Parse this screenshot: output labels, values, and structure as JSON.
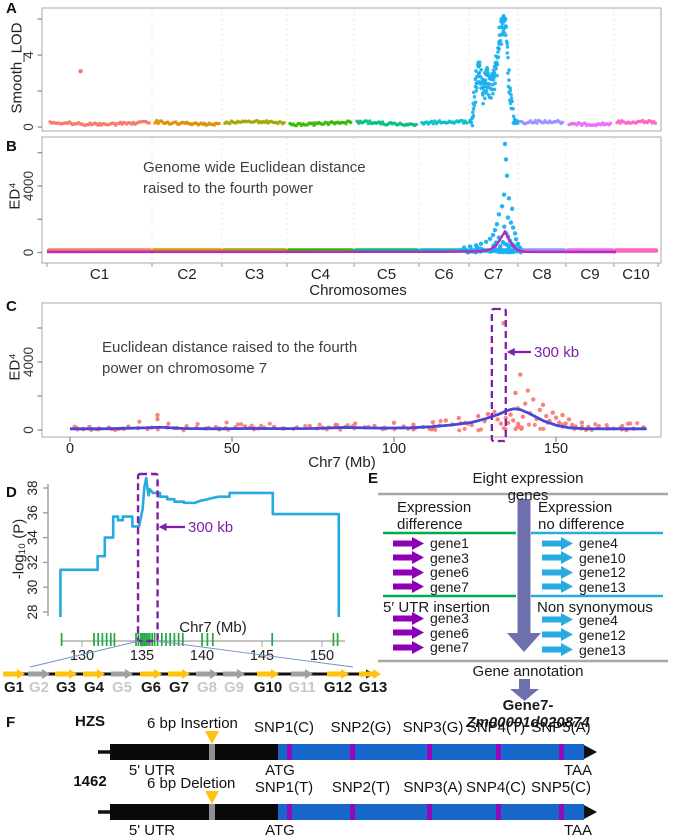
{
  "panels": {
    "a": "A",
    "b": "B",
    "c": "C",
    "d": "D",
    "e": "E",
    "f": "F"
  },
  "colors": {
    "accent_purple": "#7f1fa8",
    "arrow_purple": "#8d00b5",
    "arrow_cyan": "#29abe2",
    "slate_arrow": "#6e70ad",
    "green_line": "#00ad4e",
    "cyan_line": "#29abe2",
    "gray_line": "#a8a8a8",
    "curve_cyan": "#25aae1",
    "fit_blue": "#4646d8",
    "fit_magenta": "#bb2abb",
    "dot_salmon": "#f8766d",
    "dot_cyan": "#18b0f0",
    "gene_yellow": "#ffc30b",
    "gene_gray": "#a0a0a0",
    "gene_gray_label": "#c8c8c8",
    "snp_green": "#1ca83e",
    "f_blue": "#1667c9",
    "f_purple": "#9208be",
    "f_triangle": "#ffc30b",
    "border_gray": "#a8a8a8",
    "grid_gray": "#dedede"
  },
  "chart_data": [
    {
      "id": "A",
      "type": "scatter",
      "ylabel": "Smooth_LOD",
      "yticks": [
        0,
        2,
        4,
        6
      ],
      "ytick_labels": [
        "0",
        "",
        "4",
        ""
      ],
      "ylim": [
        0,
        6.8
      ],
      "categories": [
        "C1",
        "C2",
        "C3",
        "C4",
        "C5",
        "C6",
        "C7",
        "C8",
        "C9",
        "C10"
      ],
      "series_colors": [
        "#f8766d",
        "#d89000",
        "#a3a500",
        "#39b600",
        "#00bf7d",
        "#00bfc4",
        "#18b0f0",
        "#9590ff",
        "#e76bf3",
        "#ff62bc"
      ],
      "baseline_lod": 0.22,
      "outlier": {
        "category": "C1",
        "frac": 0.32,
        "lod": 3.1
      },
      "c7_peak_profile": [
        [
          0.0,
          0.28
        ],
        [
          0.05,
          0.5
        ],
        [
          0.1,
          1.6
        ],
        [
          0.14,
          2.9
        ],
        [
          0.18,
          3.7
        ],
        [
          0.22,
          3.8
        ],
        [
          0.26,
          2.9
        ],
        [
          0.3,
          2.5
        ],
        [
          0.34,
          3.1
        ],
        [
          0.38,
          3.5
        ],
        [
          0.42,
          2.8
        ],
        [
          0.47,
          3.1
        ],
        [
          0.52,
          3.4
        ],
        [
          0.57,
          4.2
        ],
        [
          0.62,
          5.4
        ],
        [
          0.66,
          6.2
        ],
        [
          0.71,
          6.5
        ],
        [
          0.75,
          6.3
        ],
        [
          0.79,
          4.6
        ],
        [
          0.82,
          2.3
        ],
        [
          0.86,
          2.1
        ],
        [
          0.89,
          1.2
        ],
        [
          0.92,
          0.4
        ],
        [
          1.0,
          0.3
        ]
      ]
    },
    {
      "id": "B",
      "type": "scatter+line",
      "ylabel": "ED⁴",
      "xlabel": "Chromosomes",
      "caption": "Genome wide Euclidean distance\nraised to the fourth power",
      "yticks": [
        0,
        2000,
        4000,
        6000
      ],
      "ytick_labels": [
        "0",
        "",
        "4000",
        ""
      ],
      "ylim": [
        0,
        6800
      ],
      "categories": [
        "C1",
        "C2",
        "C3",
        "C4",
        "C5",
        "C6",
        "C7",
        "C8",
        "C9",
        "C10"
      ],
      "c7_points": [
        [
          0.735,
          6530
        ],
        [
          0.755,
          5600
        ],
        [
          0.775,
          4620
        ],
        [
          0.715,
          3480
        ],
        [
          0.815,
          3260
        ],
        [
          0.88,
          2630
        ],
        [
          0.675,
          2780
        ],
        [
          0.61,
          2300
        ],
        [
          0.795,
          2100
        ],
        [
          0.855,
          1800
        ],
        [
          0.9,
          1500
        ],
        [
          0.94,
          1150
        ],
        [
          0.96,
          800
        ],
        [
          0.57,
          1700
        ],
        [
          0.53,
          1350
        ],
        [
          0.49,
          1050
        ],
        [
          0.43,
          820
        ],
        [
          0.35,
          640
        ],
        [
          0.245,
          520
        ],
        [
          0.145,
          430
        ],
        [
          0.02,
          360
        ],
        [
          -0.1,
          300
        ],
        [
          0.61,
          900
        ],
        [
          0.69,
          620
        ],
        [
          0.775,
          480
        ],
        [
          0.835,
          380
        ],
        [
          1.0,
          520
        ],
        [
          1.04,
          300
        ],
        [
          0.5,
          420
        ],
        [
          0.55,
          600
        ],
        [
          0.64,
          380
        ],
        [
          0.72,
          1550
        ],
        [
          0.76,
          1150
        ],
        [
          0.8,
          950
        ],
        [
          0.84,
          700
        ],
        [
          0.88,
          500
        ],
        [
          0.92,
          350
        ]
      ],
      "fit_line": [
        [
          -9.0,
          30
        ],
        [
          -0.8,
          40
        ],
        [
          0.0,
          60
        ],
        [
          0.29,
          90
        ],
        [
          0.43,
          180
        ],
        [
          0.55,
          420
        ],
        [
          0.63,
          760
        ],
        [
          0.69,
          1050
        ],
        [
          0.735,
          1280
        ],
        [
          0.775,
          1020
        ],
        [
          0.84,
          640
        ],
        [
          0.92,
          330
        ],
        [
          1.0,
          140
        ],
        [
          1.08,
          60
        ],
        [
          1.25,
          35
        ],
        [
          3.0,
          30
        ]
      ]
    },
    {
      "id": "C",
      "type": "scatter+line",
      "ylabel": "ED⁴",
      "xlabel": "Chr7 (Mb)",
      "caption": "Euclidean distance raised to the fourth\npower on chromosome 7",
      "annotation": {
        "text": "300 kb",
        "box_mb": [
          130.2,
          134.5
        ]
      },
      "yticks": [
        0,
        2000,
        4000,
        6000
      ],
      "ytick_labels": [
        "0",
        "",
        "4000",
        ""
      ],
      "ylim": [
        0,
        7500
      ],
      "xticks": [
        0,
        50,
        100,
        150
      ],
      "xlim": [
        0,
        182
      ],
      "fit_line": [
        [
          0,
          70
        ],
        [
          10,
          70
        ],
        [
          20,
          110
        ],
        [
          28,
          160
        ],
        [
          35,
          90
        ],
        [
          45,
          70
        ],
        [
          55,
          90
        ],
        [
          65,
          80
        ],
        [
          75,
          90
        ],
        [
          85,
          150
        ],
        [
          95,
          110
        ],
        [
          105,
          130
        ],
        [
          112,
          200
        ],
        [
          118,
          300
        ],
        [
          124,
          450
        ],
        [
          128,
          650
        ],
        [
          132,
          900
        ],
        [
          135,
          1150
        ],
        [
          137,
          1250
        ],
        [
          139,
          1200
        ],
        [
          142,
          950
        ],
        [
          146,
          550
        ],
        [
          150,
          280
        ],
        [
          154,
          130
        ],
        [
          158,
          80
        ],
        [
          165,
          70
        ],
        [
          178,
          70
        ]
      ],
      "dots": [
        [
          2,
          120
        ],
        [
          4,
          60
        ],
        [
          6,
          180
        ],
        [
          9,
          90
        ],
        [
          12,
          140
        ],
        [
          15,
          60
        ],
        [
          18,
          200
        ],
        [
          21,
          110
        ],
        [
          24,
          90
        ],
        [
          27,
          880
        ],
        [
          27,
          640
        ],
        [
          30,
          150
        ],
        [
          33,
          110
        ],
        [
          36,
          220
        ],
        [
          39,
          130
        ],
        [
          42,
          90
        ],
        [
          45,
          170
        ],
        [
          48,
          110
        ],
        [
          51,
          140
        ],
        [
          54,
          200
        ],
        [
          57,
          90
        ],
        [
          60,
          130
        ],
        [
          63,
          180
        ],
        [
          66,
          90
        ],
        [
          70,
          150
        ],
        [
          74,
          230
        ],
        [
          78,
          120
        ],
        [
          82,
          300
        ],
        [
          85,
          170
        ],
        [
          88,
          380
        ],
        [
          91,
          160
        ],
        [
          94,
          240
        ],
        [
          97,
          130
        ],
        [
          100,
          420
        ],
        [
          103,
          200
        ],
        [
          106,
          310
        ],
        [
          109,
          170
        ],
        [
          112,
          460
        ],
        [
          114,
          260
        ],
        [
          116,
          560
        ],
        [
          118,
          330
        ],
        [
          120,
          700
        ],
        [
          122,
          420
        ],
        [
          124,
          300
        ],
        [
          126,
          820
        ],
        [
          128,
          520
        ],
        [
          129,
          940
        ],
        [
          131,
          1060
        ],
        [
          132,
          620
        ],
        [
          133,
          380
        ],
        [
          133.8,
          6280
        ],
        [
          134.5,
          700
        ],
        [
          135.2,
          420
        ],
        [
          136,
          900
        ],
        [
          136.8,
          560
        ],
        [
          137.5,
          2180
        ],
        [
          138.2,
          1280
        ],
        [
          139,
          3260
        ],
        [
          139.8,
          780
        ],
        [
          140.5,
          1550
        ],
        [
          141.3,
          2320
        ],
        [
          142,
          980
        ],
        [
          143,
          1800
        ],
        [
          144,
          640
        ],
        [
          145,
          1180
        ],
        [
          146,
          1480
        ],
        [
          147,
          820
        ],
        [
          148,
          540
        ],
        [
          149,
          1020
        ],
        [
          150,
          720
        ],
        [
          151,
          440
        ],
        [
          152,
          880
        ],
        [
          153,
          380
        ],
        [
          154,
          620
        ],
        [
          155,
          300
        ],
        [
          156,
          200
        ],
        [
          158,
          440
        ],
        [
          160,
          180
        ],
        [
          163,
          120
        ],
        [
          166,
          90
        ],
        [
          170,
          140
        ],
        [
          174,
          80
        ],
        [
          177,
          160
        ]
      ]
    },
    {
      "id": "D",
      "type": "step-line",
      "ylabel": "-log₁₀ (P)",
      "xlabel": "Chr7 (Mb)",
      "yticks": [
        28,
        30,
        32,
        34,
        36,
        38
      ],
      "xticks": [
        130,
        135,
        140,
        145,
        150
      ],
      "xlim": [
        128,
        152.5
      ],
      "annotation": {
        "text": "300 kb",
        "box_mb": [
          134.67,
          136.3
        ]
      },
      "curve": [
        [
          128.2,
          27.6
        ],
        [
          128.2,
          31.4
        ],
        [
          131.3,
          31.4
        ],
        [
          131.3,
          32.5
        ],
        [
          131.9,
          32.5
        ],
        [
          131.9,
          34.0
        ],
        [
          132.6,
          34.0
        ],
        [
          132.6,
          35.7
        ],
        [
          133.0,
          35.7
        ],
        [
          133.0,
          35.4
        ],
        [
          133.4,
          35.4
        ],
        [
          133.4,
          35.7
        ],
        [
          134.2,
          35.7
        ],
        [
          134.2,
          34.9
        ],
        [
          134.75,
          34.9
        ],
        [
          134.9,
          35.6
        ],
        [
          135.05,
          36.3
        ],
        [
          135.2,
          38.1
        ],
        [
          135.35,
          38.8
        ],
        [
          135.45,
          38.0
        ],
        [
          135.55,
          37.4
        ],
        [
          135.65,
          37.9
        ],
        [
          135.9,
          37.6
        ],
        [
          136.5,
          37.6
        ],
        [
          136.5,
          37.3
        ],
        [
          137.1,
          37.3
        ],
        [
          137.1,
          37.1
        ],
        [
          137.7,
          37.1
        ],
        [
          137.7,
          36.9
        ],
        [
          138.5,
          36.9
        ],
        [
          138.5,
          36.8
        ],
        [
          139.4,
          36.8
        ],
        [
          139.8,
          36.95
        ],
        [
          140.3,
          37.05
        ],
        [
          140.9,
          37.2
        ],
        [
          141.4,
          37.3
        ],
        [
          142.3,
          37.3
        ],
        [
          142.3,
          37.6
        ],
        [
          145.9,
          37.6
        ],
        [
          145.9,
          35.9
        ],
        [
          151.4,
          35.9
        ],
        [
          151.4,
          27.6
        ]
      ],
      "snp_ticks_mb": [
        128.3,
        131.0,
        131.35,
        131.7,
        132.05,
        132.4,
        132.7,
        134.5,
        134.7,
        134.9,
        135.05,
        135.2,
        135.35,
        135.5,
        135.65,
        135.85,
        136.05,
        136.3,
        136.65,
        137.0,
        137.35,
        137.7,
        138.05,
        138.4,
        140.0,
        140.45,
        140.9,
        145.85,
        150.95,
        151.3
      ],
      "gene_track": {
        "genes": [
          {
            "name": "G1",
            "highlight": true
          },
          {
            "name": "G2",
            "highlight": false
          },
          {
            "name": "G3",
            "highlight": true
          },
          {
            "name": "G4",
            "highlight": true
          },
          {
            "name": "G5",
            "highlight": false
          },
          {
            "name": "G6",
            "highlight": true
          },
          {
            "name": "G7",
            "highlight": true
          },
          {
            "name": "G8",
            "highlight": false
          },
          {
            "name": "G9",
            "highlight": false
          },
          {
            "name": "G10",
            "highlight": true
          },
          {
            "name": "G11",
            "highlight": false
          },
          {
            "name": "G12",
            "highlight": true
          },
          {
            "name": "G13",
            "highlight": true
          }
        ]
      }
    }
  ],
  "panelE": {
    "title": "Eight expression genes",
    "left": {
      "header": "Expression\ndifference",
      "genes": [
        "gene1",
        "gene3",
        "gene6",
        "gene7"
      ],
      "section2": "5′ UTR insertion",
      "genes2": [
        "gene3",
        "gene6",
        "gene7"
      ]
    },
    "right": {
      "header": "Expression\nno difference",
      "genes": [
        "gene4",
        "gene10",
        "gene12",
        "gene13"
      ],
      "section2": "Non synonymous",
      "genes2": [
        "gene4",
        "gene12",
        "gene13"
      ]
    },
    "footer": "Gene annotation",
    "gene_name": {
      "prefix": "Gene7-",
      "italic": "Zm00001d020874"
    }
  },
  "panelF": {
    "rows": [
      {
        "label": "HZS",
        "indel": "6 bp Insertion",
        "snps": [
          "SNP1(C)",
          "SNP2(G)",
          "SNP3(G)",
          "SNP4(T)",
          "SNP5(A)"
        ],
        "utr": "5' UTR",
        "start_codon": "ATG",
        "stop_codon": "TAA"
      },
      {
        "label": "1462",
        "indel": "6 bp Deletion",
        "snps": [
          "SNP1(T)",
          "SNP2(T)",
          "SNP3(A)",
          "SNP4(C)",
          "SNP5(C)"
        ],
        "utr": "5' UTR",
        "start_codon": "ATG",
        "stop_codon": "TAA"
      }
    ]
  }
}
